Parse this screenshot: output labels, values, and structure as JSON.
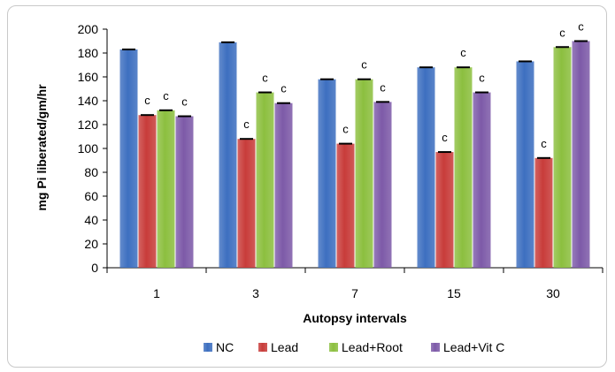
{
  "chart_data": {
    "type": "bar",
    "xlabel": "Autopsy intervals",
    "ylabel": "mg Pi liberated/gm/hr",
    "ylim": [
      0,
      200
    ],
    "y_ticks": [
      0,
      20,
      40,
      60,
      80,
      100,
      120,
      140,
      160,
      180,
      200
    ],
    "grid": false,
    "legend_position": "bottom",
    "categories": [
      "1",
      "3",
      "7",
      "15",
      "30"
    ],
    "series": [
      {
        "name": "NC",
        "color": "#3d6fc0",
        "values": [
          183,
          189,
          158,
          168,
          173
        ],
        "labels": [
          "",
          "",
          "",
          "",
          ""
        ]
      },
      {
        "name": "Lead",
        "color": "#c83c3a",
        "values": [
          128,
          108,
          104,
          97,
          92
        ],
        "labels": [
          "c",
          "c",
          "c",
          "c",
          "c"
        ]
      },
      {
        "name": "Lead+Root",
        "color": "#8cbf3f",
        "values": [
          132,
          147,
          158,
          168,
          185
        ],
        "labels": [
          "c",
          "c",
          "c",
          "c",
          "c"
        ]
      },
      {
        "name": "Lead+Vit C",
        "color": "#7d5aa8",
        "values": [
          127,
          138,
          139,
          147,
          190
        ],
        "labels": [
          "c",
          "c",
          "c",
          "c",
          "c"
        ]
      }
    ]
  }
}
